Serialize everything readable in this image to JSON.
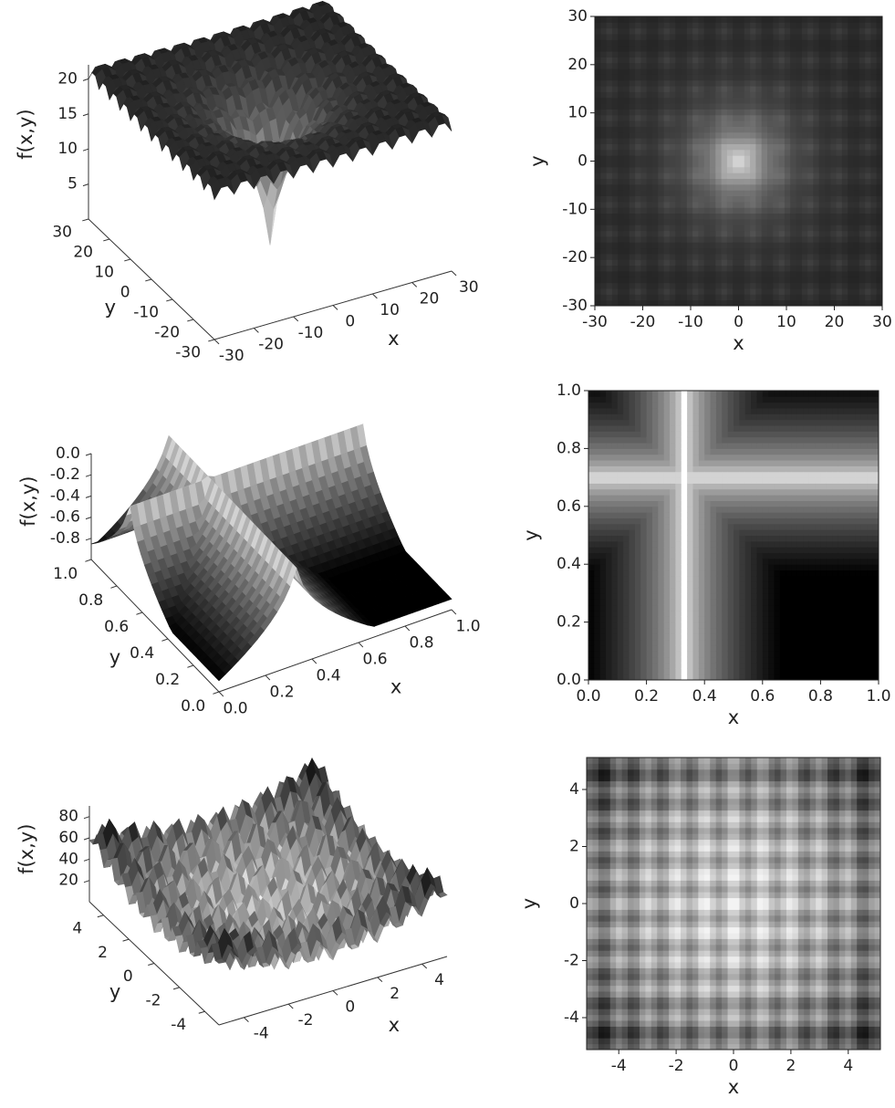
{
  "chart_data": [
    {
      "type": "surface3d",
      "xlabel": "x",
      "ylabel": "y",
      "zlabel": "f(x,y)",
      "xlim": [
        -30,
        30
      ],
      "ylim": [
        -30,
        30
      ],
      "zlim": [
        0,
        22
      ],
      "xticks": [
        -30,
        -20,
        -10,
        0,
        10,
        20,
        30
      ],
      "yticks": [
        -30,
        -20,
        -10,
        0,
        10,
        20,
        30
      ],
      "zticks": [
        5,
        10,
        15,
        20
      ]
    },
    {
      "type": "heatmap",
      "xlabel": "x",
      "ylabel": "y",
      "xlim": [
        -30,
        30
      ],
      "ylim": [
        -30,
        30
      ],
      "xticks": [
        -30,
        -20,
        -10,
        0,
        10,
        20,
        30
      ],
      "yticks": [
        -30,
        -20,
        -10,
        0,
        10,
        20,
        30
      ]
    },
    {
      "type": "surface3d",
      "xlabel": "x",
      "ylabel": "y",
      "zlabel": "f(x,y)",
      "xlim": [
        0,
        1
      ],
      "ylim": [
        0,
        1
      ],
      "zlim": [
        -1,
        0
      ],
      "xticks": [
        {
          "value": 0,
          "label": "0.0"
        },
        0.2,
        0.4,
        0.6,
        0.8,
        {
          "value": 1,
          "label": "1.0"
        }
      ],
      "yticks": [
        {
          "value": 0,
          "label": "0.0"
        },
        0.2,
        0.4,
        0.6,
        0.8,
        {
          "value": 1,
          "label": "1.0"
        }
      ],
      "zticks": [
        -0.8,
        -0.6,
        -0.4,
        -0.2,
        {
          "value": 0,
          "label": "0.0"
        }
      ]
    },
    {
      "type": "heatmap",
      "xlabel": "x",
      "ylabel": "y",
      "xlim": [
        0,
        1
      ],
      "ylim": [
        0,
        1
      ],
      "xticks": [
        {
          "value": 0,
          "label": "0.0"
        },
        0.2,
        0.4,
        0.6,
        0.8,
        {
          "value": 1,
          "label": "1.0"
        }
      ],
      "yticks": [
        {
          "value": 0,
          "label": "0.0"
        },
        0.2,
        0.4,
        0.6,
        0.8,
        {
          "value": 1,
          "label": "1.0"
        }
      ]
    },
    {
      "type": "surface3d",
      "xlabel": "x",
      "ylabel": "y",
      "zlabel": "f(x,y)",
      "xlim": [
        -5.12,
        5.12
      ],
      "ylim": [
        -5.12,
        5.12
      ],
      "zlim": [
        0,
        90
      ],
      "xticks": [
        -4,
        -2,
        0,
        2,
        4
      ],
      "yticks": [
        -4,
        -2,
        0,
        2,
        4
      ],
      "zticks": [
        20,
        40,
        60,
        80
      ]
    },
    {
      "type": "heatmap",
      "xlabel": "x",
      "ylabel": "y",
      "xlim": [
        -5.12,
        5.12
      ],
      "ylim": [
        -5.12,
        5.12
      ],
      "xticks": [
        -4,
        -2,
        0,
        2,
        4
      ],
      "yticks": [
        -4,
        -2,
        0,
        2,
        4
      ]
    }
  ]
}
